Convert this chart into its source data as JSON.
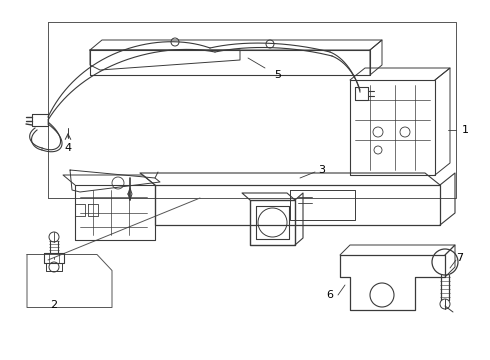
{
  "bg": "#ffffff",
  "lc": "#3a3a3a",
  "fig_w": 4.9,
  "fig_h": 3.6,
  "dpi": 100,
  "label_fs": 8,
  "label_color": "#000000"
}
